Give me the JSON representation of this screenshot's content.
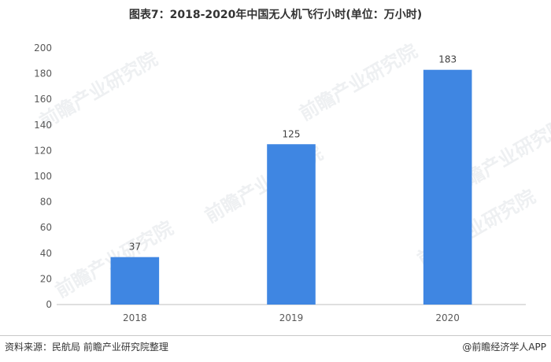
{
  "chart_data": {
    "type": "bar",
    "title": "图表7：2018-2020年中国无人机飞行小时(单位：万小时)",
    "categories": [
      "2018",
      "2019",
      "2020"
    ],
    "values": [
      37,
      125,
      183
    ],
    "data_labels": [
      "37",
      "125",
      "183"
    ],
    "ylim": [
      0,
      200
    ],
    "yticks": [
      "0",
      "20",
      "40",
      "60",
      "80",
      "100",
      "120",
      "140",
      "160",
      "180",
      "200"
    ],
    "grid": false,
    "legend": "none",
    "bar_color": "#3f86e2"
  },
  "footer": {
    "source": "资料来源：民航局 前瞻产业研究院整理",
    "credit": "@前瞻经济学人APP"
  },
  "watermark": {
    "text": "前瞻产业研究院"
  }
}
